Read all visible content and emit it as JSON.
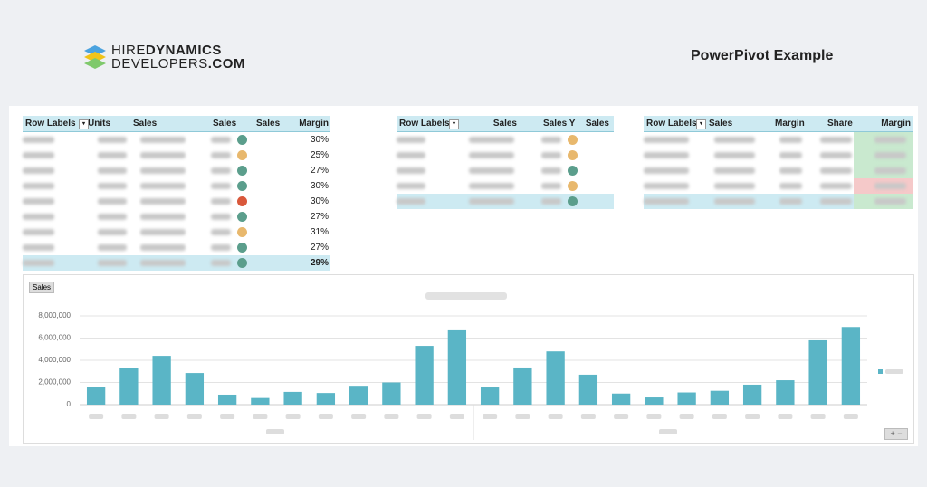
{
  "header": {
    "logo": {
      "brand_light": "HIRE",
      "brand_bold": "DYNAMICS",
      "domain_light": "DEVELOPERS",
      "domain_bold": ".COM"
    },
    "title": "PowerPivot Example"
  },
  "tables": [
    {
      "headers": [
        "Row Labels",
        "Units",
        "Sales",
        "Sales",
        "Sales",
        "Margin"
      ],
      "rows": [
        {
          "margin": "30%",
          "indicator": "#5b9e8c"
        },
        {
          "margin": "25%",
          "indicator": "#e8b86d"
        },
        {
          "margin": "27%",
          "indicator": "#5b9e8c"
        },
        {
          "margin": "30%",
          "indicator": "#5b9e8c"
        },
        {
          "margin": "30%",
          "indicator": "#d9583b"
        },
        {
          "margin": "27%",
          "indicator": "#5b9e8c"
        },
        {
          "margin": "31%",
          "indicator": "#e8b86d"
        },
        {
          "margin": "27%",
          "indicator": "#5b9e8c"
        }
      ],
      "total": {
        "margin": "29%",
        "indicator": "#5b9e8c"
      }
    },
    {
      "headers": [
        "Row Labels",
        "Sales",
        "Sales Y",
        "Sales"
      ],
      "rows": [
        {
          "indicator": "#e8b86d"
        },
        {
          "indicator": "#e8b86d"
        },
        {
          "indicator": "#5b9e8c"
        },
        {
          "indicator": "#e8b86d"
        }
      ],
      "total": {
        "indicator": "#5b9e8c"
      }
    },
    {
      "headers": [
        "Row Labels",
        "Sales",
        "Margin",
        "Share",
        "Margin"
      ],
      "rows": [
        {
          "indicator": "#c9e9cf"
        },
        {
          "indicator": "#c9e9cf"
        },
        {
          "indicator": "#c9e9cf"
        },
        {
          "indicator": "#f5c9c9"
        }
      ],
      "total": {
        "indicator": "#c9e9cf"
      }
    }
  ],
  "chart_data": {
    "type": "bar",
    "filter_button": "Sales",
    "color": "#5ab5c6",
    "categories": [
      null,
      null,
      null,
      null,
      null,
      null,
      null,
      null,
      null,
      null,
      null,
      null,
      null,
      null,
      null,
      null,
      null,
      null,
      null,
      null,
      null,
      null,
      null,
      null
    ],
    "values": [
      1600000,
      3300000,
      4400000,
      2850000,
      900000,
      600000,
      1150000,
      1050000,
      1700000,
      2000000,
      5300000,
      6700000,
      1550000,
      3350000,
      4800000,
      2700000,
      1000000,
      650000,
      1100000,
      1250000,
      1800000,
      2200000,
      5800000,
      7000000
    ],
    "ylim": [
      0,
      8000000
    ],
    "yticks": [
      0,
      {
        "value": 2000000,
        "label": "2,000,000"
      },
      {
        "value": 4000000,
        "label": "4,000,000"
      },
      {
        "value": 6000000,
        "label": "6,000,000"
      },
      {
        "value": 8000000,
        "label": "8,000,000"
      }
    ],
    "grid": true
  }
}
